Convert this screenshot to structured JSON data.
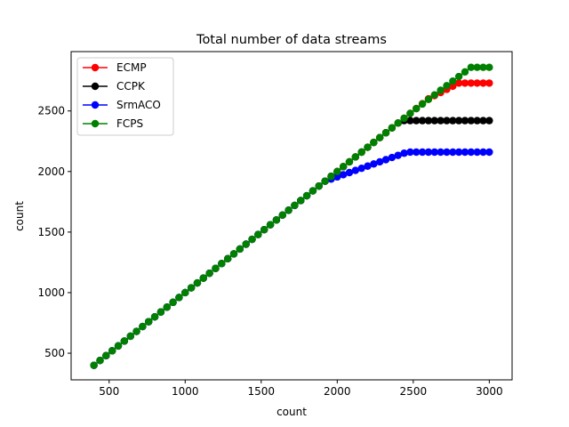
{
  "chart_data": {
    "type": "line",
    "title": "Total number of data streams",
    "xlabel": "count",
    "ylabel": "count",
    "xlim": [
      250,
      3150
    ],
    "ylim": [
      280,
      2990
    ],
    "xticks": [
      500,
      1000,
      1500,
      2000,
      2500,
      3000
    ],
    "yticks": [
      500,
      1000,
      1500,
      2000,
      2500
    ],
    "x_start": 400,
    "x_end": 3000,
    "x_step": 40,
    "legend_position": "top-left",
    "grid": false,
    "series": [
      {
        "name": "ECMP",
        "color": "#ff0000",
        "points": [
          [
            400,
            400
          ],
          [
            2600,
            2600
          ],
          [
            2800,
            2730
          ],
          [
            3000,
            2730
          ]
        ]
      },
      {
        "name": "CCPK",
        "color": "#000000",
        "points": [
          [
            400,
            400
          ],
          [
            2420,
            2420
          ],
          [
            3000,
            2420
          ]
        ]
      },
      {
        "name": "SrmACO",
        "color": "#0000ff",
        "points": [
          [
            400,
            400
          ],
          [
            1920,
            1920
          ],
          [
            2460,
            2160
          ],
          [
            3000,
            2160
          ]
        ]
      },
      {
        "name": "FCPS",
        "color": "#008000",
        "points": [
          [
            400,
            400
          ],
          [
            2500,
            2500
          ],
          [
            2880,
            2860
          ],
          [
            3000,
            2860
          ]
        ]
      }
    ]
  }
}
